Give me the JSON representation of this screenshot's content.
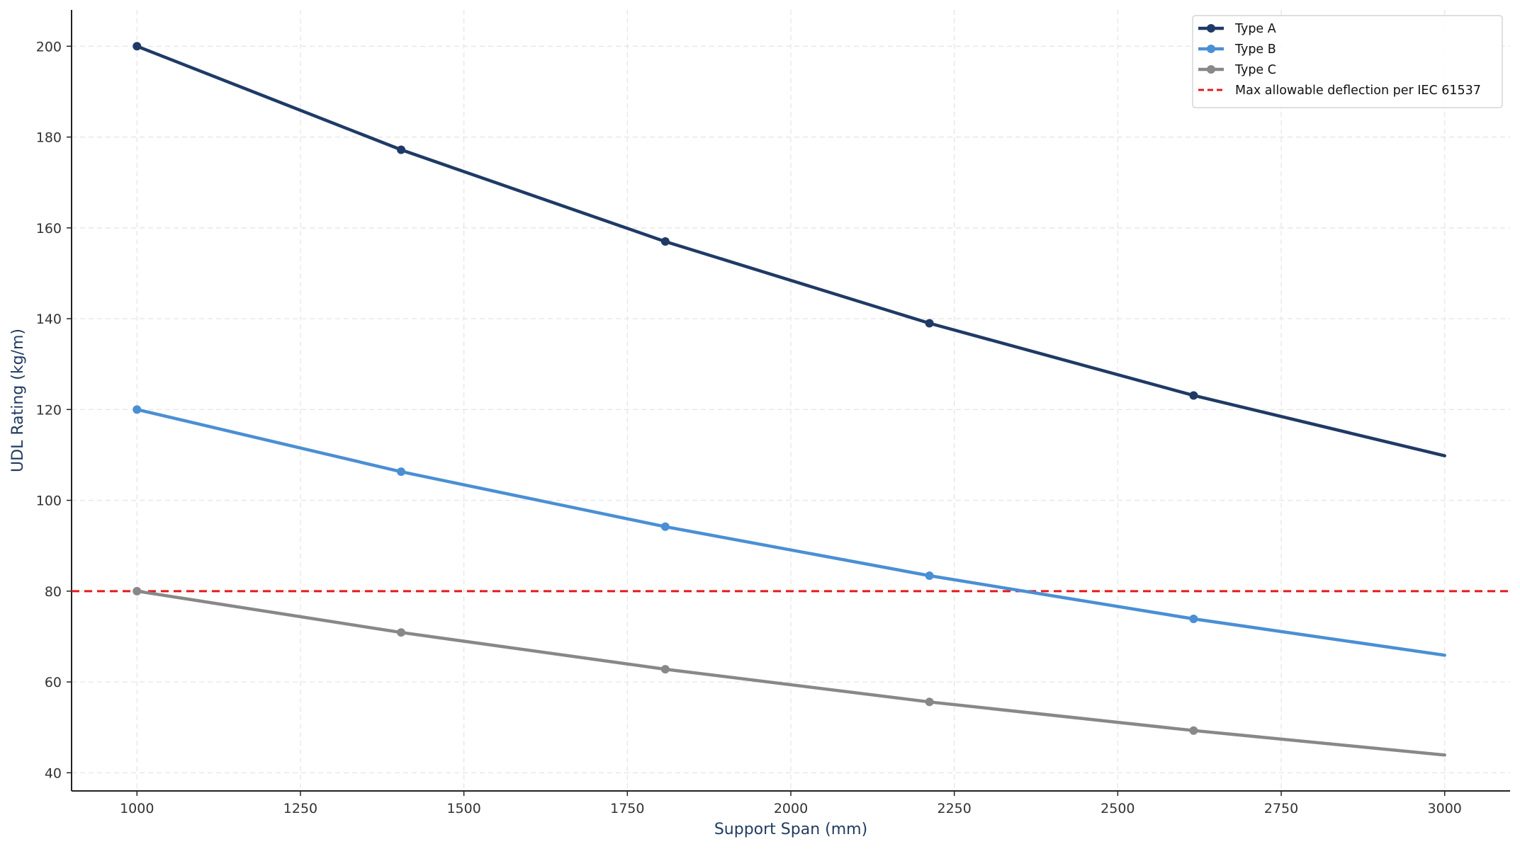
{
  "chart_data": {
    "type": "line",
    "title": "",
    "xlabel": "Support Span (mm)",
    "ylabel": "UDL Rating (kg/m)",
    "xlim": [
      900,
      3100
    ],
    "ylim": [
      36,
      208
    ],
    "xticks": [
      1000,
      1250,
      1500,
      1750,
      2000,
      2250,
      2500,
      2750,
      3000
    ],
    "yticks": [
      40,
      60,
      80,
      100,
      120,
      140,
      160,
      180,
      200
    ],
    "grid": true,
    "legend_position": "top-right",
    "series": [
      {
        "name": "Type A",
        "color": "#1f3a66",
        "x": [
          1000,
          1404,
          1808,
          2212,
          2616,
          3000
        ],
        "y": [
          200.0,
          177.2,
          157.0,
          139.0,
          123.1,
          109.8
        ],
        "marker_x": [
          1000,
          1404,
          1808,
          2212,
          2616
        ]
      },
      {
        "name": "Type B",
        "color": "#4a8fd4",
        "x": [
          1000,
          1404,
          1808,
          2212,
          2616,
          3000
        ],
        "y": [
          120.0,
          106.3,
          94.2,
          83.4,
          73.9,
          65.9
        ],
        "marker_x": [
          1000,
          1404,
          1808,
          2212,
          2616
        ]
      },
      {
        "name": "Type C",
        "color": "#888888",
        "x": [
          1000,
          1404,
          1808,
          2212,
          2616,
          3000
        ],
        "y": [
          80.0,
          70.9,
          62.8,
          55.6,
          49.3,
          43.9
        ],
        "marker_x": [
          1000,
          1404,
          1808,
          2212,
          2616
        ]
      }
    ],
    "reference_lines": [
      {
        "name": "Max allowable deflection per IEC 61537",
        "y": 80,
        "color": "#e41a1c",
        "style": "dashed"
      }
    ]
  }
}
